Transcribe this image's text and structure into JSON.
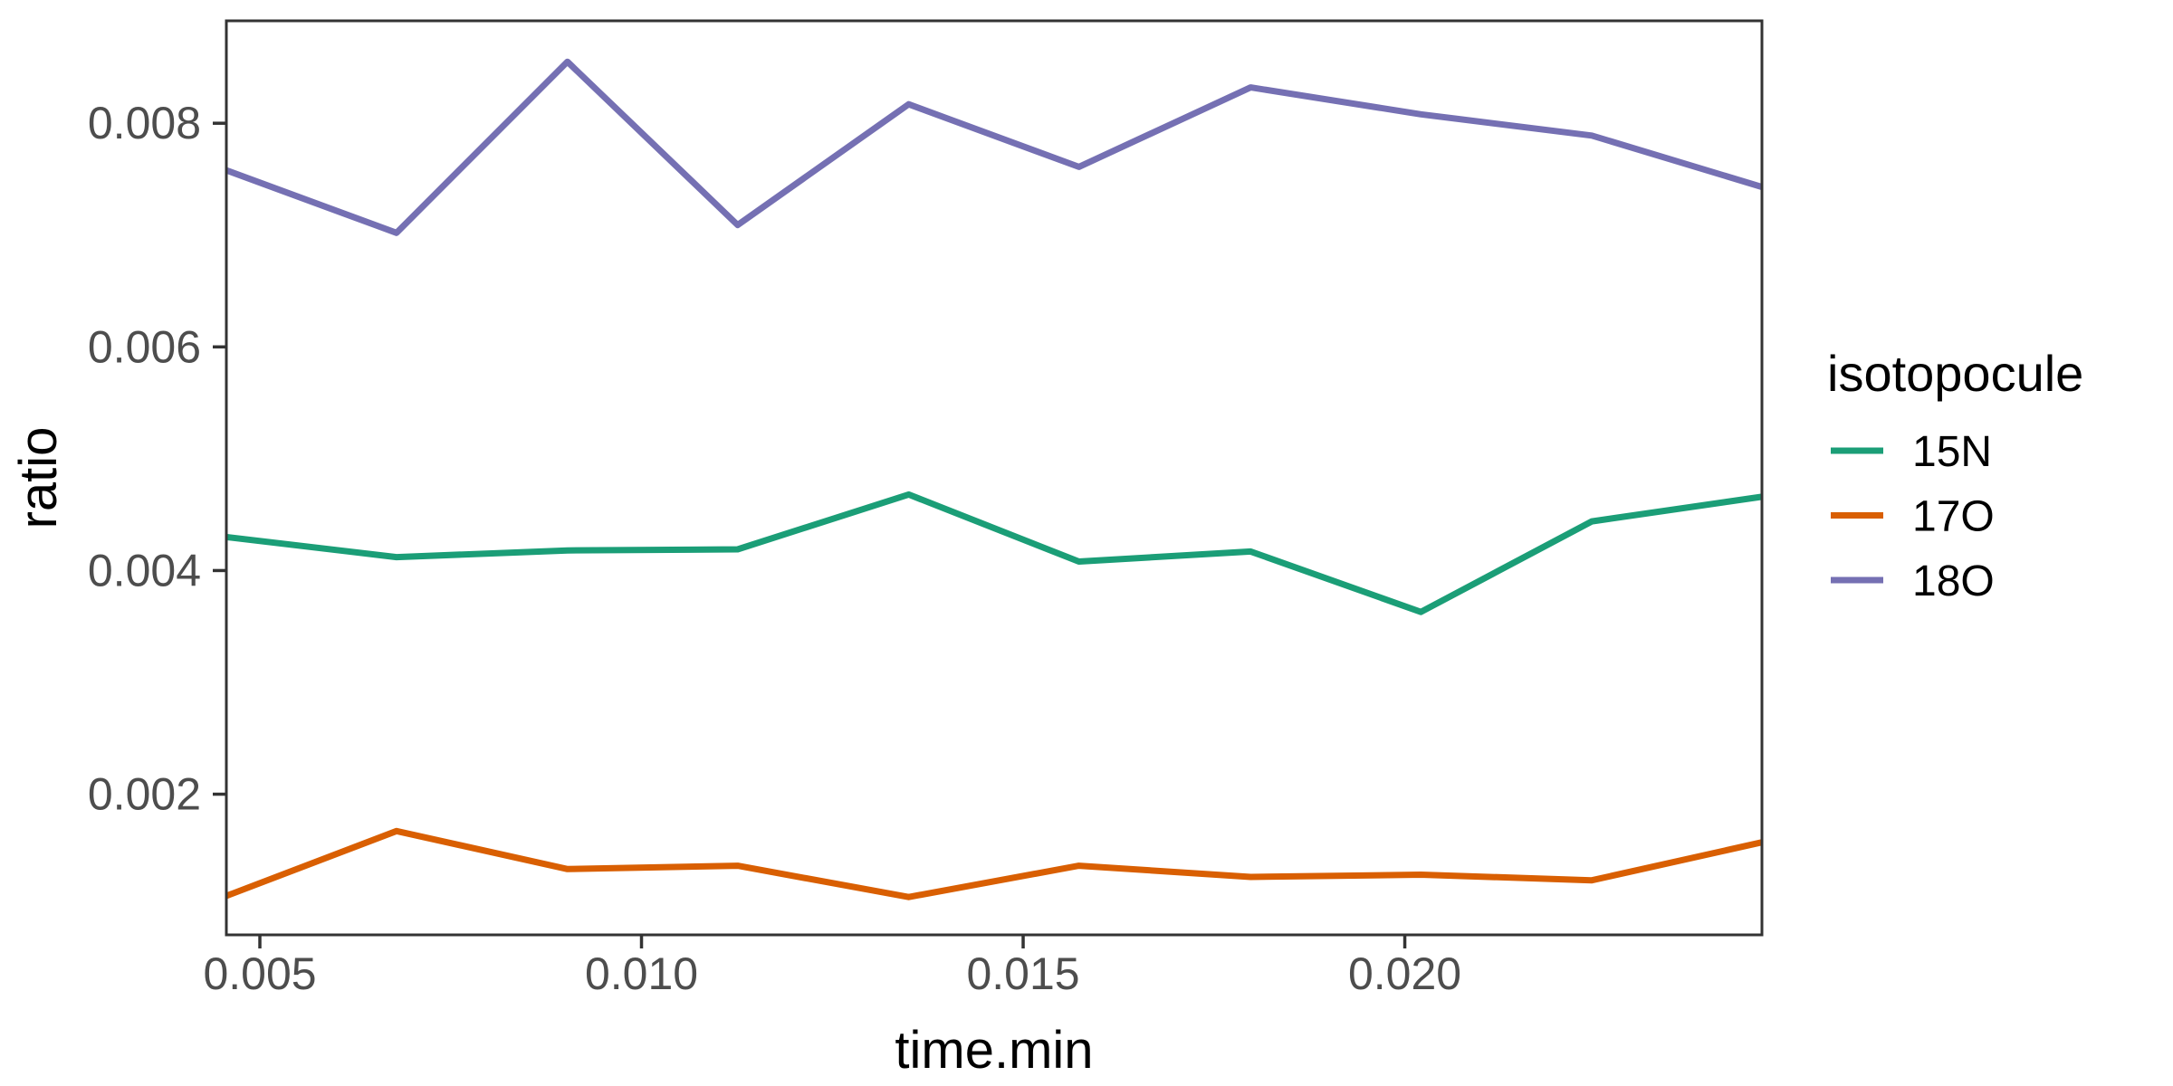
{
  "chart_data": {
    "type": "line",
    "title": "",
    "xlabel": "time.min",
    "ylabel": "ratio",
    "legend": {
      "title": "isotopocule",
      "position": "right"
    },
    "x": [
      0.00456,
      0.00679,
      0.00903,
      0.01126,
      0.0135,
      0.01573,
      0.01798,
      0.02021,
      0.02245,
      0.02468
    ],
    "series": [
      {
        "name": "15N",
        "color": "#1B9E77",
        "values": [
          0.0043,
          0.00412,
          0.00418,
          0.00419,
          0.00468,
          0.00408,
          0.00417,
          0.00363,
          0.00444,
          0.00466
        ]
      },
      {
        "name": "17O",
        "color": "#D95F02",
        "values": [
          0.00109,
          0.00167,
          0.00133,
          0.00136,
          0.00108,
          0.00136,
          0.00126,
          0.00128,
          0.00123,
          0.00157
        ]
      },
      {
        "name": "18O",
        "color": "#7570B3",
        "values": [
          0.00758,
          0.00702,
          0.00855,
          0.00709,
          0.00817,
          0.00761,
          0.00832,
          0.00808,
          0.00789,
          0.00743
        ]
      }
    ],
    "xticks": {
      "values": [
        0.005,
        0.01,
        0.015,
        0.02
      ],
      "labels": [
        "0.005",
        "0.010",
        "0.015",
        "0.020"
      ]
    },
    "yticks": {
      "values": [
        0.002,
        0.004,
        0.006,
        0.008
      ],
      "labels": [
        "0.002",
        "0.004",
        "0.006",
        "0.008"
      ]
    },
    "xlim": [
      0.004561,
      0.024679
    ],
    "ylim": [
      0.000742,
      0.008916
    ],
    "grid": "off",
    "colors": {
      "panel_border": "#333333",
      "tick_mark": "#333333",
      "tick_label": "#4D4D4D",
      "axis_title": "#000000",
      "background": "#FFFFFF"
    }
  }
}
